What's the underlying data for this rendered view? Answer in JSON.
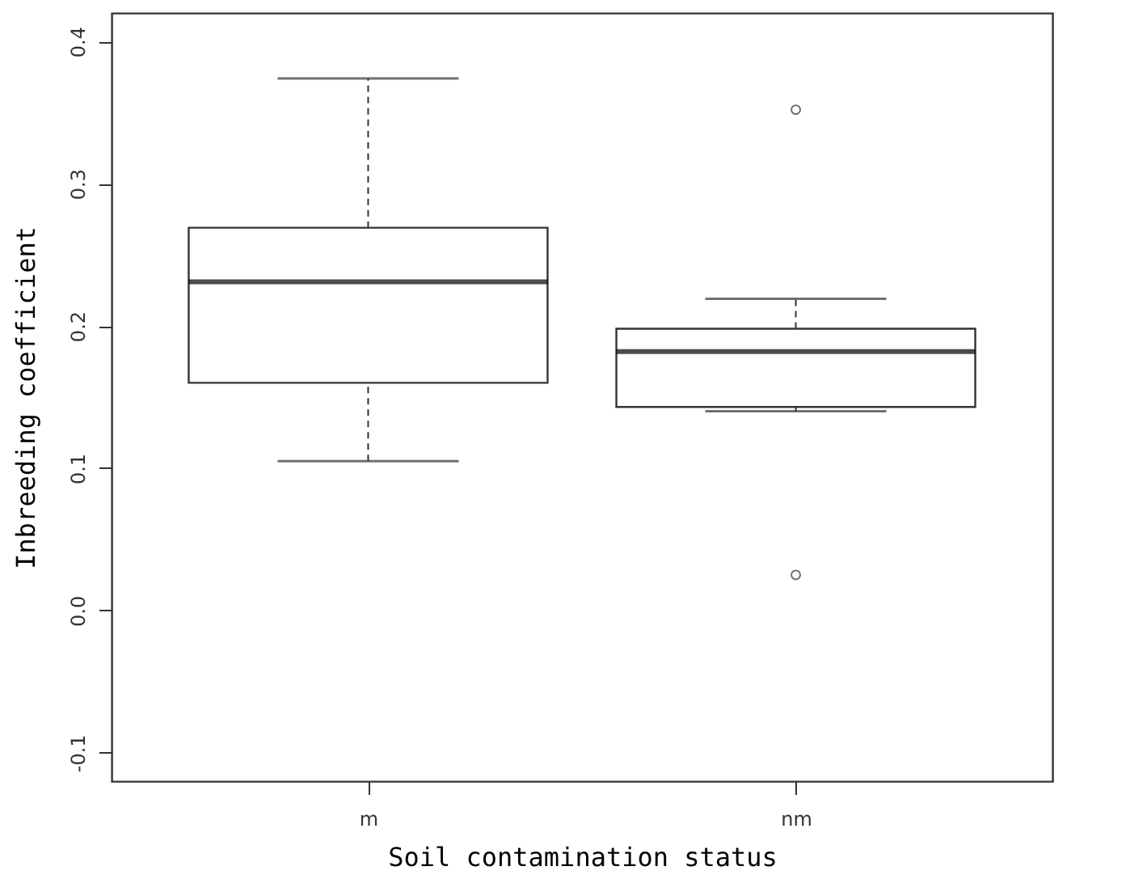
{
  "chart_data": {
    "type": "box",
    "xlabel": "Soil contamination status",
    "ylabel": "Inbreeding coefficient",
    "categories": [
      "m",
      "nm"
    ],
    "boxes": [
      {
        "low": 0.105,
        "q1": 0.16,
        "median": 0.231,
        "q3": 0.269,
        "high": 0.374
      },
      {
        "low": 0.14,
        "q1": 0.143,
        "median": 0.182,
        "q3": 0.198,
        "high": 0.219,
        "outliers": [
          0.352,
          0.025
        ]
      }
    ],
    "ylim": [
      -0.12,
      0.42
    ],
    "yticks": [
      {
        "value": -0.1,
        "label": "-0.1"
      },
      {
        "value": 0,
        "label": "0.0"
      },
      0.1,
      0.2,
      0.3,
      0.4
    ]
  }
}
